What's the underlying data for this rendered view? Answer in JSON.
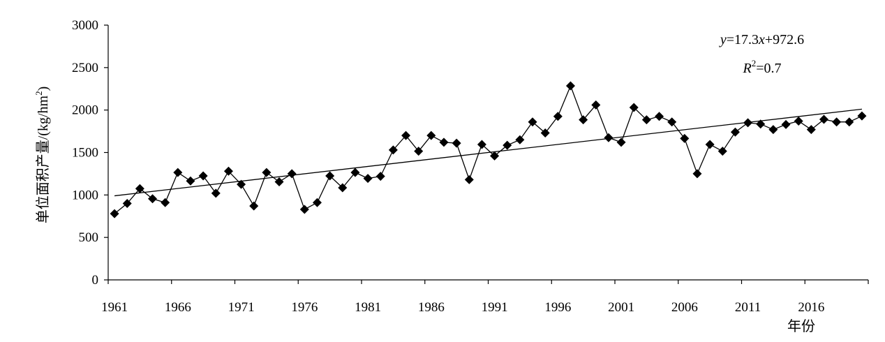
{
  "chart_data": {
    "type": "line",
    "xlabel": "年份",
    "ylabel": "单位面积产量/(kg/hm",
    "ylabel_sup": "2",
    "ylabel_close": ")",
    "ylim": [
      0,
      3000
    ],
    "yticks": [
      "0",
      "500",
      "1000",
      "1500",
      "2000",
      "2500",
      "3000"
    ],
    "xticks": [
      "1961",
      "1966",
      "1971",
      "1976",
      "1981",
      "1986",
      "1991",
      "1996",
      "2001",
      "2006",
      "2011",
      "2016"
    ],
    "x": [
      1961,
      1962,
      1963,
      1964,
      1965,
      1966,
      1967,
      1968,
      1969,
      1970,
      1971,
      1972,
      1973,
      1974,
      1975,
      1976,
      1977,
      1978,
      1979,
      1980,
      1981,
      1982,
      1983,
      1984,
      1985,
      1986,
      1987,
      1988,
      1989,
      1990,
      1991,
      1992,
      1993,
      1994,
      1995,
      1996,
      1997,
      1998,
      1999,
      2000,
      2001,
      2002,
      2003,
      2004,
      2005,
      2006,
      2007,
      2008,
      2009,
      2010,
      2011,
      2012,
      2013,
      2014,
      2015,
      2016,
      2017,
      2018,
      2019,
      2020
    ],
    "series": [
      {
        "marker": "diamond",
        "color": "#000000",
        "values": [
          780,
          900,
          1075,
          955,
          910,
          1265,
          1165,
          1225,
          1020,
          1280,
          1125,
          870,
          1265,
          1155,
          1250,
          830,
          910,
          1225,
          1085,
          1265,
          1195,
          1220,
          1530,
          1700,
          1515,
          1700,
          1620,
          1610,
          1180,
          1595,
          1460,
          1585,
          1650,
          1860,
          1730,
          1925,
          2285,
          1885,
          2060,
          1675,
          1620,
          2030,
          1885,
          1925,
          1860,
          1665,
          1250,
          1595,
          1515,
          1740,
          1850,
          1835,
          1770,
          1830,
          1870,
          1770,
          1890,
          1860,
          1860,
          1930
        ]
      }
    ],
    "trendline": {
      "equation_y": "y",
      "equation_eq": "=17.3",
      "equation_x": "x",
      "equation_rest": "+972.6",
      "r2_label": "R",
      "r2_sup": "2",
      "r2_value": "=0.7",
      "slope": 17.3,
      "intercept": 972.6
    }
  }
}
